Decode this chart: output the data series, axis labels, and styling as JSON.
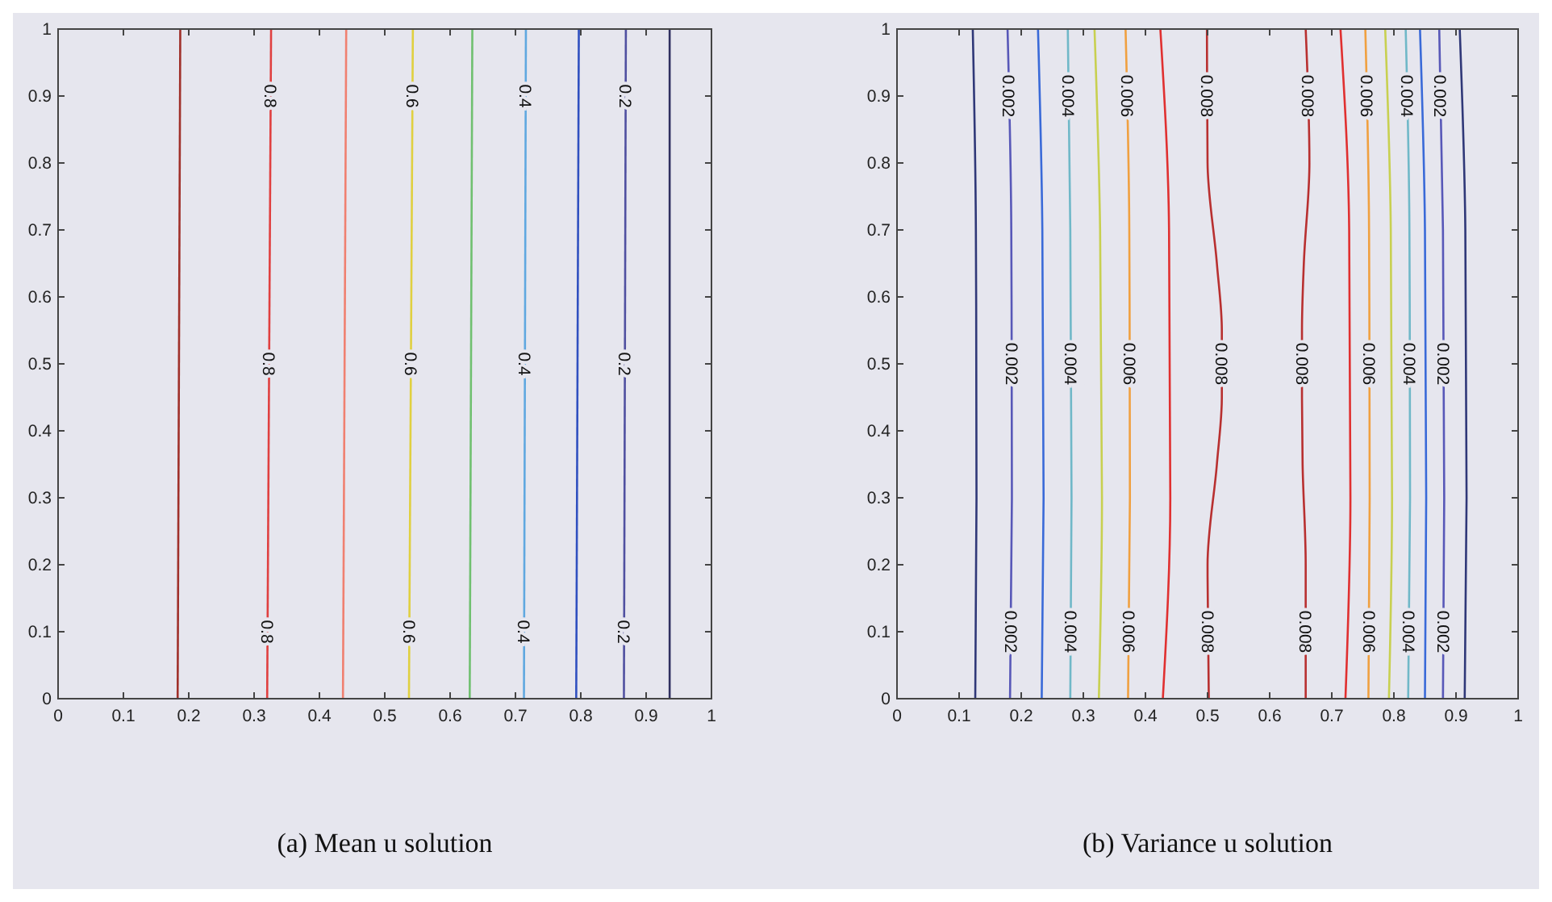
{
  "chart_data": [
    {
      "type": "line",
      "annotations": [
        "(a) Mean u solution"
      ],
      "xlim": [
        0,
        1
      ],
      "ylim": [
        0,
        1
      ],
      "xticks": [
        0,
        0.1,
        0.2,
        0.3,
        0.4,
        0.5,
        0.6,
        0.7,
        0.8,
        0.9,
        1
      ],
      "yticks": [
        0,
        0.1,
        0.2,
        0.3,
        0.4,
        0.5,
        0.6,
        0.7,
        0.8,
        0.9,
        1
      ],
      "marker": "none",
      "line_style": "solid",
      "grid": false,
      "series": [
        {
          "color": "#a0302a",
          "x": [
            0.183,
            0.187
          ],
          "values": [
            0,
            1
          ]
        },
        {
          "name": "0.8",
          "color": "#e04040",
          "x": [
            0.32,
            0.326
          ],
          "values": [
            0,
            1
          ]
        },
        {
          "color": "#f08070",
          "x": [
            0.436,
            0.441
          ],
          "values": [
            0,
            1
          ]
        },
        {
          "name": "0.6",
          "color": "#e0d040",
          "x": [
            0.537,
            0.543
          ],
          "values": [
            0,
            1
          ]
        },
        {
          "color": "#70c070",
          "x": [
            0.63,
            0.634
          ],
          "values": [
            0,
            1
          ]
        },
        {
          "name": "0.4",
          "color": "#60a8e0",
          "x": [
            0.713,
            0.716
          ],
          "values": [
            0,
            1
          ]
        },
        {
          "color": "#3050c0",
          "x": [
            0.793,
            0.797
          ],
          "values": [
            0,
            1
          ]
        },
        {
          "name": "0.2",
          "color": "#5050a0",
          "x": [
            0.866,
            0.869
          ],
          "values": [
            0,
            1
          ]
        },
        {
          "color": "#303060",
          "x": [
            0.936,
            0.936
          ],
          "values": [
            0,
            1
          ]
        }
      ]
    },
    {
      "type": "line",
      "annotations": [
        "(b) Variance u solution"
      ],
      "xlim": [
        0,
        1
      ],
      "ylim": [
        0,
        1
      ],
      "xticks": [
        0,
        0.1,
        0.2,
        0.3,
        0.4,
        0.5,
        0.6,
        0.7,
        0.8,
        0.9,
        1
      ],
      "yticks": [
        0,
        0.1,
        0.2,
        0.3,
        0.4,
        0.5,
        0.6,
        0.7,
        0.8,
        0.9,
        1
      ],
      "marker": "none",
      "line_style": "solid",
      "grid": false,
      "series": [
        {
          "color": "#303878",
          "x": [
            0.126,
            0.128,
            0.127,
            0.122
          ],
          "values": [
            0,
            0.3,
            0.7,
            1
          ]
        },
        {
          "name": "0.002",
          "color": "#5858b8",
          "x": [
            0.182,
            0.185,
            0.184,
            0.178
          ],
          "values": [
            0,
            0.3,
            0.7,
            1
          ]
        },
        {
          "color": "#3a6ad8",
          "x": [
            0.233,
            0.236,
            0.234,
            0.227
          ],
          "values": [
            0,
            0.3,
            0.7,
            1
          ]
        },
        {
          "name": "0.004",
          "color": "#70b8c8",
          "x": [
            0.279,
            0.281,
            0.279,
            0.275
          ],
          "values": [
            0,
            0.3,
            0.7,
            1
          ]
        },
        {
          "color": "#c8d050",
          "x": [
            0.325,
            0.33,
            0.327,
            0.318
          ],
          "values": [
            0,
            0.3,
            0.7,
            1
          ]
        },
        {
          "name": "0.006",
          "color": "#f0a040",
          "x": [
            0.372,
            0.375,
            0.374,
            0.368
          ],
          "values": [
            0,
            0.3,
            0.7,
            1
          ]
        },
        {
          "color": "#e03030",
          "x": [
            0.428,
            0.44,
            0.438,
            0.424
          ],
          "values": [
            0,
            0.3,
            0.7,
            1
          ]
        },
        {
          "name": "0.008",
          "color": "#b83030",
          "x": [
            0.502,
            0.5,
            0.515,
            0.523,
            0.523,
            0.515,
            0.5,
            0.499
          ],
          "values": [
            0,
            0.2,
            0.35,
            0.45,
            0.55,
            0.65,
            0.8,
            1
          ]
        },
        {
          "name": "0.008",
          "color": "#b83030",
          "x": [
            0.658,
            0.658,
            0.653,
            0.652,
            0.652,
            0.655,
            0.664,
            0.658
          ],
          "values": [
            0,
            0.2,
            0.35,
            0.45,
            0.55,
            0.65,
            0.8,
            1
          ]
        },
        {
          "color": "#e03030",
          "x": [
            0.722,
            0.73,
            0.728,
            0.714
          ],
          "values": [
            0,
            0.3,
            0.7,
            1
          ]
        },
        {
          "name": "0.006",
          "color": "#f0a040",
          "x": [
            0.759,
            0.761,
            0.76,
            0.754
          ],
          "values": [
            0,
            0.3,
            0.7,
            1
          ]
        },
        {
          "color": "#c8d050",
          "x": [
            0.792,
            0.797,
            0.795,
            0.786
          ],
          "values": [
            0,
            0.3,
            0.7,
            1
          ]
        },
        {
          "name": "0.004",
          "color": "#70b8c8",
          "x": [
            0.823,
            0.826,
            0.825,
            0.819
          ],
          "values": [
            0,
            0.3,
            0.7,
            1
          ]
        },
        {
          "color": "#3a6ad8",
          "x": [
            0.85,
            0.852,
            0.85,
            0.842
          ],
          "values": [
            0,
            0.3,
            0.7,
            1
          ]
        },
        {
          "name": "0.002",
          "color": "#5858b8",
          "x": [
            0.879,
            0.881,
            0.879,
            0.873
          ],
          "values": [
            0,
            0.3,
            0.7,
            1
          ]
        },
        {
          "color": "#303878",
          "x": [
            0.914,
            0.917,
            0.915,
            0.906
          ],
          "values": [
            0,
            0.3,
            0.7,
            1
          ]
        }
      ]
    }
  ]
}
